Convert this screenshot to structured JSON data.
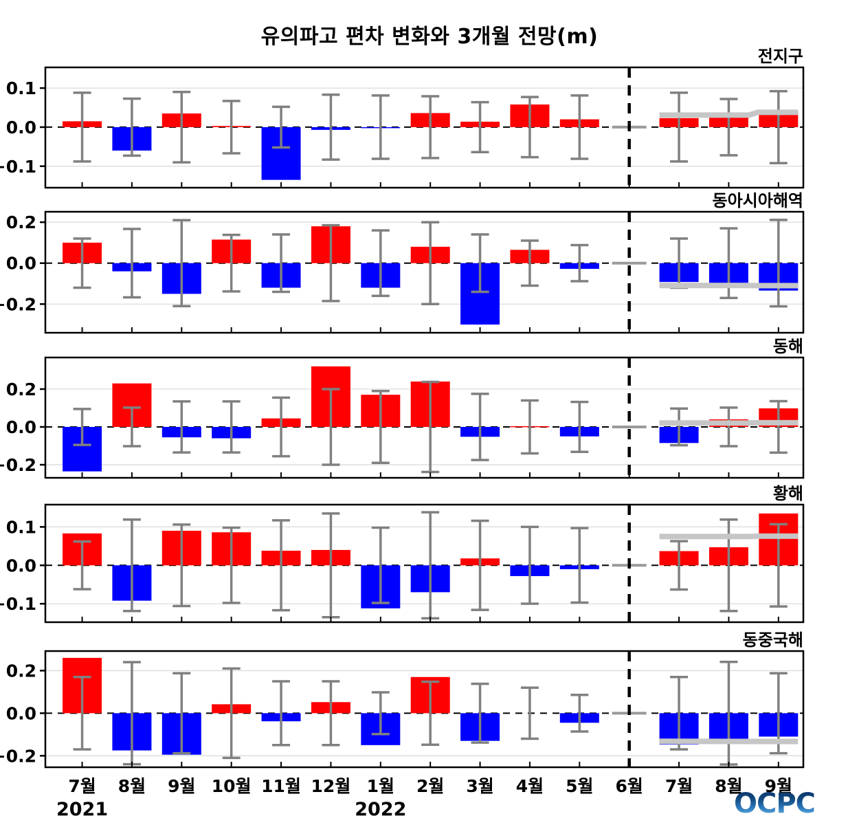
{
  "figure_title": "유의파고 편차 변화와 3개월 전망(m)",
  "logo_text": "OCPC",
  "colors": {
    "positive_bar": "#ff0000",
    "negative_bar": "#0000ff",
    "error_bar": "#808080",
    "forecast_line": "#c6c6c6",
    "june_marker": "#9a9a9a",
    "zero_line": "#000000",
    "divider_line": "#000000",
    "grid_line": "#d8d8d8",
    "frame": "#000000",
    "logo_blue_top": "#0a2d68",
    "logo_blue_bottom": "#8fd4ee"
  },
  "x_axis": {
    "month_labels": [
      "7월",
      "8월",
      "9월",
      "10월",
      "11월",
      "12월",
      "1월",
      "2월",
      "3월",
      "4월",
      "5월",
      "6월",
      "7월",
      "8월",
      "9월"
    ],
    "year_labels": [
      {
        "text": "2021",
        "month_index": 0
      },
      {
        "text": "2022",
        "month_index": 6
      }
    ],
    "divider_month_index": 11,
    "forecast_start_index": 12
  },
  "chart_data": [
    {
      "type": "bar",
      "region": "전지구",
      "ylim": [
        -0.155,
        0.153
      ],
      "yticks": [
        0.1,
        0.0,
        -0.1
      ],
      "ytick_labels": [
        "0.1",
        "0.0",
        "−0.1"
      ],
      "values": [
        0.015,
        -0.06,
        0.035,
        0.003,
        -0.135,
        -0.007,
        -0.002,
        0.036,
        0.014,
        0.058,
        0.02,
        0,
        0.023,
        0.026,
        0.04
      ],
      "errors": [
        0.088,
        0.073,
        0.09,
        0.067,
        0.052,
        0.083,
        0.081,
        0.079,
        0.064,
        0.077,
        0.081,
        null,
        0.088,
        0.072,
        0.092
      ],
      "forecast_mean": [
        0.031,
        0.031,
        0.038
      ]
    },
    {
      "type": "bar",
      "region": "동아시아해역",
      "ylim": [
        -0.34,
        0.251
      ],
      "yticks": [
        0.2,
        0.0,
        -0.2
      ],
      "ytick_labels": [
        "0.2",
        "0.0",
        "−0.2"
      ],
      "values": [
        0.1,
        -0.04,
        -0.15,
        0.115,
        -0.12,
        0.18,
        -0.12,
        0.08,
        -0.3,
        0.065,
        -0.028,
        0,
        -0.092,
        -0.1,
        -0.134
      ],
      "errors": [
        0.12,
        0.167,
        0.21,
        0.138,
        0.14,
        0.185,
        0.16,
        0.2,
        0.14,
        0.11,
        0.088,
        null,
        0.12,
        0.17,
        0.211
      ],
      "forecast_mean": [
        -0.109,
        -0.109,
        -0.11
      ]
    },
    {
      "type": "bar",
      "region": "동해",
      "ylim": [
        -0.269,
        0.367
      ],
      "yticks": [
        0.2,
        0.0,
        -0.2
      ],
      "ytick_labels": [
        "0.2",
        "0.0",
        "−0.2"
      ],
      "values": [
        -0.235,
        0.23,
        -0.055,
        -0.06,
        0.045,
        0.32,
        0.17,
        0.24,
        -0.052,
        0.004,
        -0.05,
        0,
        -0.085,
        0.04,
        0.098
      ],
      "errors": [
        0.095,
        0.102,
        0.135,
        0.135,
        0.155,
        0.2,
        0.19,
        0.238,
        0.175,
        0.14,
        0.132,
        null,
        0.097,
        0.102,
        0.136
      ],
      "forecast_mean": [
        0.021,
        0.021,
        0.022
      ]
    },
    {
      "type": "bar",
      "region": "황해",
      "ylim": [
        -0.148,
        0.158
      ],
      "yticks": [
        0.1,
        0.0,
        -0.1
      ],
      "ytick_labels": [
        "0.1",
        "0.0",
        "−0.1"
      ],
      "values": [
        0.083,
        -0.092,
        0.09,
        0.086,
        0.038,
        0.04,
        -0.112,
        -0.07,
        0.018,
        -0.028,
        -0.01,
        0,
        0.037,
        0.047,
        0.135
      ],
      "errors": [
        0.062,
        0.119,
        0.106,
        0.098,
        0.117,
        0.135,
        0.098,
        0.138,
        0.116,
        0.1,
        0.097,
        null,
        0.063,
        0.119,
        0.107
      ],
      "forecast_mean": [
        0.075,
        0.075,
        0.076
      ]
    },
    {
      "type": "bar",
      "region": "동중국해",
      "ylim": [
        -0.254,
        0.292
      ],
      "yticks": [
        0.2,
        0.0,
        -0.2
      ],
      "ytick_labels": [
        "0.2",
        "0.0",
        "−0.2"
      ],
      "values": [
        0.26,
        -0.175,
        -0.195,
        0.042,
        -0.038,
        0.052,
        -0.15,
        0.17,
        -0.13,
        0.0,
        -0.045,
        0,
        -0.147,
        -0.12,
        -0.11
      ],
      "errors": [
        0.17,
        0.24,
        0.188,
        0.21,
        0.15,
        0.15,
        0.098,
        0.148,
        0.138,
        0.12,
        0.086,
        null,
        0.17,
        0.241,
        0.188
      ],
      "forecast_mean": [
        -0.132,
        -0.133,
        -0.133
      ]
    }
  ]
}
